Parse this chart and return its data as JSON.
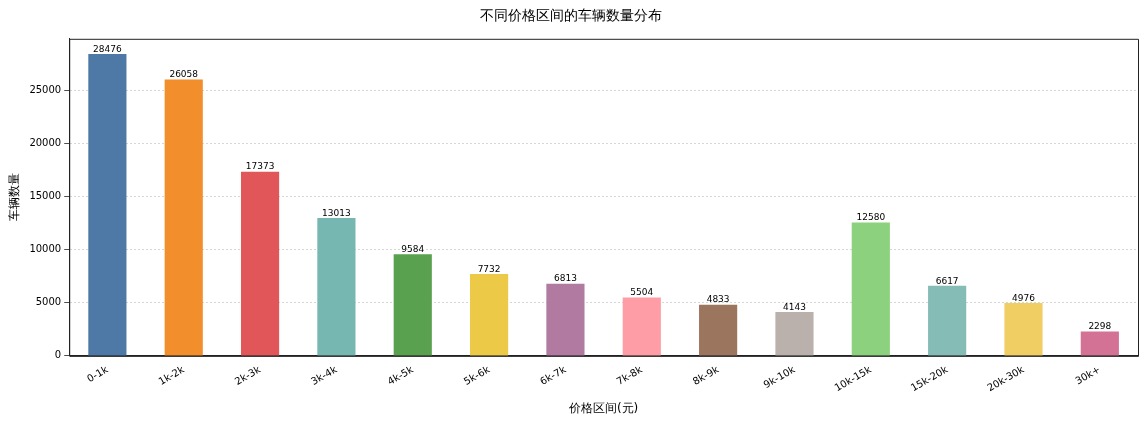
{
  "chart_data": {
    "type": "bar",
    "title": "不同价格区间的车辆数量分布",
    "xlabel": "价格区间(元)",
    "ylabel": "车辆数量",
    "categories": [
      "0-1k",
      "1k-2k",
      "2k-3k",
      "3k-4k",
      "4k-5k",
      "5k-6k",
      "6k-7k",
      "7k-8k",
      "8k-9k",
      "9k-10k",
      "10k-15k",
      "15k-20k",
      "20k-30k",
      "30k+"
    ],
    "values": [
      28476,
      26058,
      17373,
      13013,
      9584,
      7732,
      6813,
      5504,
      4833,
      4143,
      12580,
      6617,
      4976,
      2298
    ],
    "colors": [
      "#4e79a7",
      "#f28e2b",
      "#e15759",
      "#76b7b2",
      "#59a14f",
      "#edc948",
      "#b07aa1",
      "#ff9da7",
      "#9c755f",
      "#bab0ac",
      "#8cd17d",
      "#86bcb6",
      "#f1ce63",
      "#d37295"
    ],
    "ylim": [
      0,
      29900
    ],
    "yticks": [
      0,
      5000,
      10000,
      15000,
      20000,
      25000
    ],
    "grid": "y",
    "data_labels": true,
    "legend": false
  }
}
